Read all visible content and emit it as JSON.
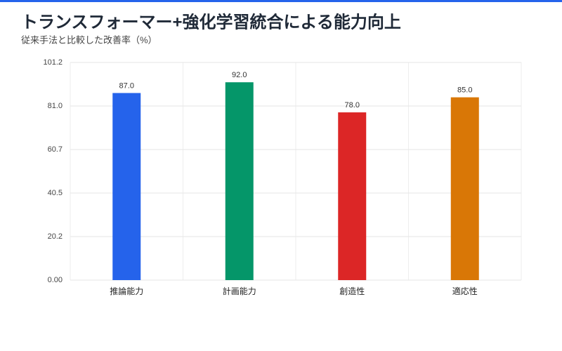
{
  "chart_data": {
    "type": "bar",
    "title": "トランスフォーマー+強化学習統合による能力向上",
    "subtitle": "従来手法と比較した改善率（%）",
    "categories": [
      "推論能力",
      "計画能力",
      "創造性",
      "適応性"
    ],
    "values": [
      87.0,
      92.0,
      78.0,
      85.0
    ],
    "value_labels": [
      "87.0",
      "92.0",
      "78.0",
      "85.0"
    ],
    "colors": [
      "#2563eb",
      "#059669",
      "#dc2626",
      "#d97706"
    ],
    "ylim": [
      0,
      101.2
    ],
    "yticks": [
      {
        "value": 0,
        "label": "0.00"
      },
      {
        "value": 20.24,
        "label": "20.2"
      },
      {
        "value": 40.48,
        "label": "40.5"
      },
      {
        "value": 60.72,
        "label": "60.7"
      },
      {
        "value": 80.96,
        "label": "81.0"
      },
      {
        "value": 101.2,
        "label": "101.2"
      }
    ],
    "grid": true
  }
}
